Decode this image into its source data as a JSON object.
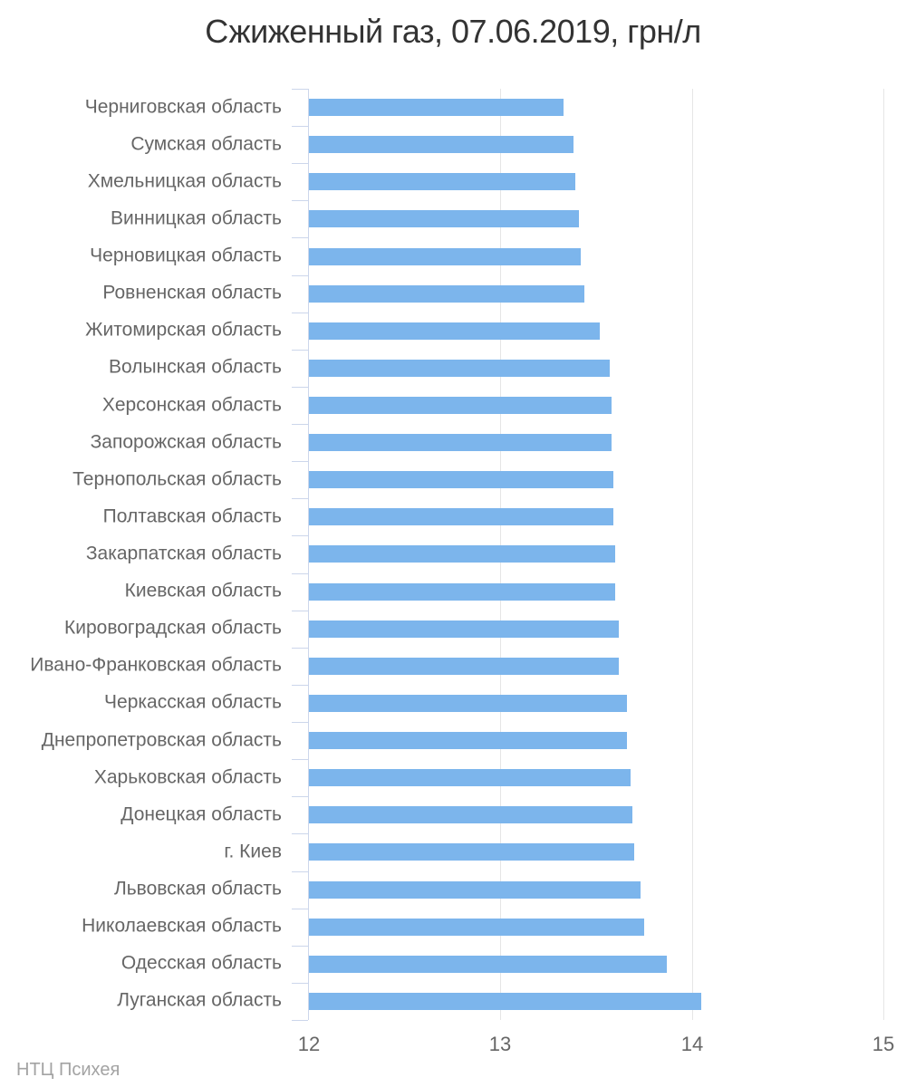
{
  "title": "Сжиженный газ, 07.06.2019, грн/л",
  "credits": "НТЦ Психея",
  "chart_data": {
    "type": "bar",
    "orientation": "horizontal",
    "title": "Сжиженный газ, 07.06.2019, грн/л",
    "xlabel": "",
    "ylabel": "",
    "xlim": [
      12,
      15
    ],
    "x_ticks": [
      12,
      13,
      14,
      15
    ],
    "grid": true,
    "legend": "none",
    "bar_color": "#7cb5ec",
    "axis_line_color": "#ccd6eb",
    "gridline_color": "#e6e6e6",
    "label_color": "#666666",
    "title_color": "#333333",
    "credits_color": "#a3a3a3",
    "categories": [
      "Черниговская область",
      "Сумская область",
      "Хмельницкая область",
      "Винницкая область",
      "Черновицкая область",
      "Ровненская область",
      "Житомирская область",
      "Волынская область",
      "Херсонская область",
      "Запорожская область",
      "Тернопольская область",
      "Полтавская область",
      "Закарпатская область",
      "Киевская область",
      "Кировоградская область",
      "Ивано-Франковская область",
      "Черкасская область",
      "Днепропетровская область",
      "Харьковская область",
      "Донецкая область",
      "г. Киев",
      "Львовская область",
      "Николаевская область",
      "Одесская область",
      "Луганская область"
    ],
    "values": [
      13.33,
      13.38,
      13.39,
      13.41,
      13.42,
      13.44,
      13.52,
      13.57,
      13.58,
      13.58,
      13.59,
      13.59,
      13.6,
      13.6,
      13.62,
      13.62,
      13.66,
      13.66,
      13.68,
      13.69,
      13.7,
      13.73,
      13.75,
      13.87,
      14.05
    ]
  }
}
